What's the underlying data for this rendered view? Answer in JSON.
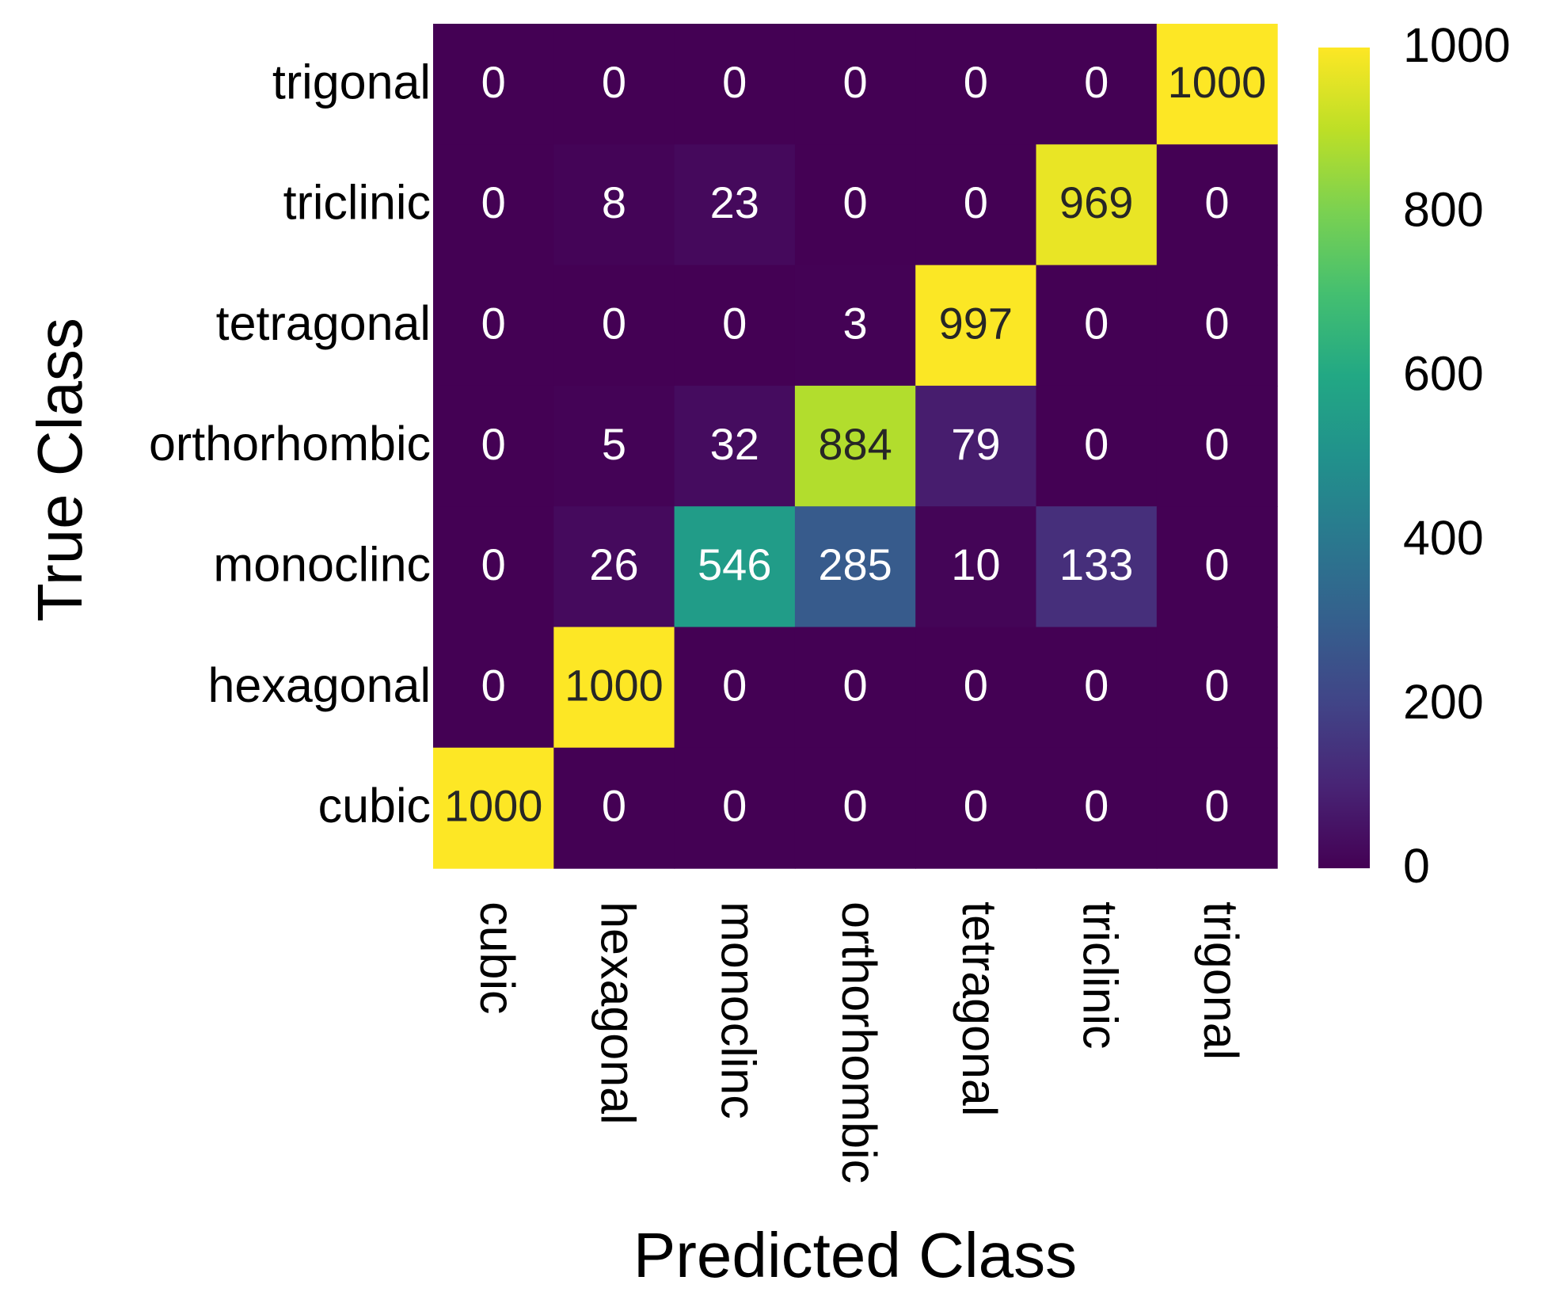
{
  "chart_data": {
    "type": "heatmap",
    "title": "",
    "xlabel": "Predicted Class",
    "ylabel": "True Class",
    "x_categories": [
      "cubic",
      "hexagonal",
      "monoclinc",
      "orthorhombic",
      "tetragonal",
      "triclinic",
      "trigonal"
    ],
    "y_categories": [
      "trigonal",
      "triclinic",
      "tetragonal",
      "orthorhombic",
      "monoclinc",
      "hexagonal",
      "cubic"
    ],
    "values": [
      [
        0,
        0,
        0,
        0,
        0,
        0,
        1000
      ],
      [
        0,
        8,
        23,
        0,
        0,
        969,
        0
      ],
      [
        0,
        0,
        0,
        3,
        997,
        0,
        0
      ],
      [
        0,
        5,
        32,
        884,
        79,
        0,
        0
      ],
      [
        0,
        26,
        546,
        285,
        10,
        133,
        0
      ],
      [
        0,
        1000,
        0,
        0,
        0,
        0,
        0
      ],
      [
        1000,
        0,
        0,
        0,
        0,
        0,
        0
      ]
    ],
    "colormap": "viridis",
    "vmin": 0,
    "vmax": 1000,
    "colorbar_ticks": [
      0,
      200,
      400,
      600,
      800,
      1000
    ],
    "annotation_colors": {
      "light": "#ffffff",
      "dark": "#262626"
    }
  }
}
